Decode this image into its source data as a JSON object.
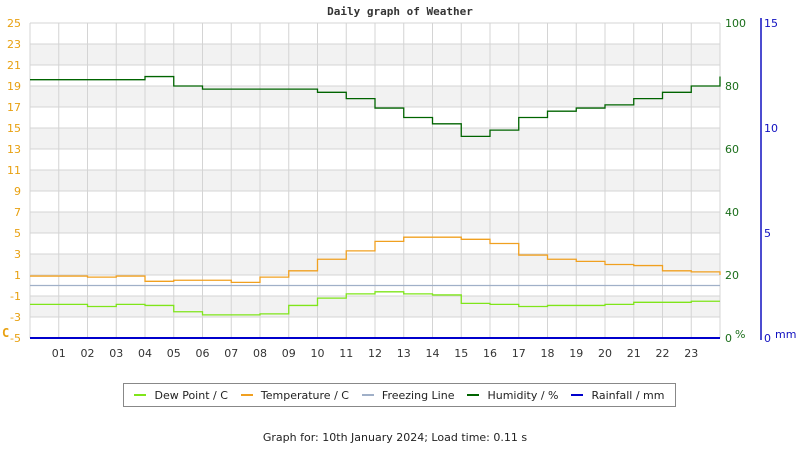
{
  "title": "Daily graph of Weather",
  "footer": "Graph for: 10th January 2024; Load time: 0.11 s",
  "colors": {
    "dew_point": "#7fe51a",
    "temperature": "#f0a020",
    "freezing": "#a0b0c8",
    "humidity": "#006400",
    "rainfall": "#0000cc",
    "temp_axis": "#e8a010",
    "humidity_axis": "#1a6e1a",
    "rain_axis": "#1010c0",
    "grid": "#d4d4d4",
    "band": "#f2f2f2"
  },
  "legend": [
    {
      "label": "Dew Point / C",
      "color": "#7fe51a"
    },
    {
      "label": "Temperature / C",
      "color": "#f0a020"
    },
    {
      "label": "Freezing Line",
      "color": "#a0b0c8"
    },
    {
      "label": "Humidity / %",
      "color": "#006400"
    },
    {
      "label": "Rainfall / mm",
      "color": "#0000cc"
    }
  ],
  "chart_data": {
    "type": "line",
    "title": "Daily graph of Weather",
    "xlabel": "",
    "x_ticks": [
      "01",
      "02",
      "03",
      "04",
      "05",
      "06",
      "07",
      "08",
      "09",
      "10",
      "11",
      "12",
      "13",
      "14",
      "15",
      "16",
      "17",
      "18",
      "19",
      "20",
      "21",
      "22",
      "23"
    ],
    "x_range": [
      0,
      24
    ],
    "y_left": {
      "label": "C",
      "ticks": [
        -5,
        -3,
        -1,
        1,
        3,
        5,
        7,
        9,
        11,
        13,
        15,
        17,
        19,
        21,
        23,
        25
      ],
      "range": [
        -5,
        25
      ]
    },
    "y_right_humidity": {
      "label": "%",
      "ticks": [
        0,
        20,
        40,
        60,
        80,
        100
      ],
      "range": [
        0,
        100
      ]
    },
    "y_right_rain": {
      "label": "mm",
      "ticks": [
        0,
        5,
        10,
        15
      ],
      "range": [
        0,
        15
      ]
    },
    "grid": true,
    "legend_position": "bottom",
    "x": [
      0,
      1,
      2,
      3,
      4,
      5,
      6,
      7,
      8,
      9,
      10,
      11,
      12,
      13,
      14,
      15,
      16,
      16.7,
      17,
      18,
      19,
      20,
      21,
      22,
      23,
      24
    ],
    "series": [
      {
        "name": "Dew Point / C",
        "axis": "left",
        "values": [
          -1.8,
          -1.8,
          -2.0,
          -1.8,
          -1.9,
          -2.5,
          -2.8,
          -2.8,
          -2.7,
          -1.9,
          -1.2,
          -0.8,
          -0.6,
          -0.8,
          -0.9,
          -1.7,
          -1.8,
          -1.8,
          -2.0,
          -1.9,
          -1.9,
          -1.8,
          -1.6,
          -1.6,
          -1.5,
          -1.5
        ]
      },
      {
        "name": "Temperature / C",
        "axis": "left",
        "values": [
          0.9,
          0.9,
          0.8,
          0.9,
          0.4,
          0.5,
          0.5,
          0.3,
          0.8,
          1.4,
          2.5,
          3.3,
          4.2,
          4.6,
          4.6,
          4.4,
          4.0,
          4.0,
          2.9,
          2.5,
          2.3,
          2.0,
          1.9,
          1.4,
          1.3,
          1.0
        ]
      },
      {
        "name": "Freezing Line",
        "axis": "left",
        "values": [
          0,
          0,
          0,
          0,
          0,
          0,
          0,
          0,
          0,
          0,
          0,
          0,
          0,
          0,
          0,
          0,
          0,
          0,
          0,
          0,
          0,
          0,
          0,
          0,
          0,
          0
        ]
      },
      {
        "name": "Humidity / %",
        "axis": "right_humidity",
        "values": [
          82,
          82,
          82,
          82,
          83,
          80,
          79,
          79,
          79,
          79,
          78,
          76,
          73,
          70,
          68,
          64,
          66,
          66,
          70,
          72,
          73,
          74,
          76,
          78,
          80,
          83
        ]
      },
      {
        "name": "Rainfall / mm",
        "axis": "right_rain",
        "values": [
          0,
          0,
          0,
          0,
          0,
          0,
          0,
          0,
          0,
          0,
          0,
          0,
          0,
          0,
          0,
          0,
          0,
          0,
          0,
          0,
          0,
          0,
          0,
          0,
          0,
          0
        ]
      }
    ]
  }
}
